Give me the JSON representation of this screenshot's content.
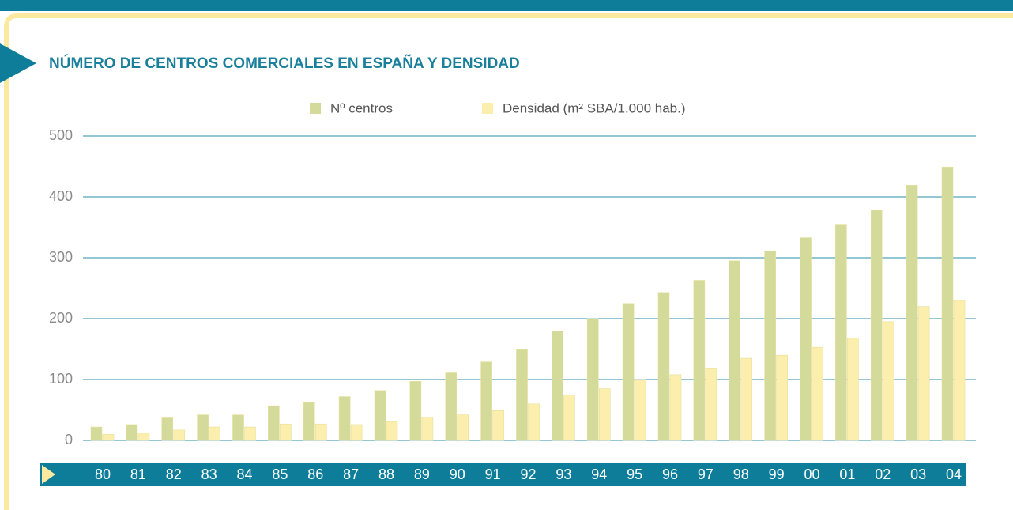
{
  "chart_data": {
    "type": "bar",
    "title": "NÚMERO DE CENTROS COMERCIALES EN ESPAÑA Y DENSIDAD",
    "categories": [
      "80",
      "81",
      "82",
      "83",
      "84",
      "85",
      "86",
      "87",
      "88",
      "89",
      "90",
      "91",
      "92",
      "93",
      "94",
      "95",
      "96",
      "97",
      "98",
      "99",
      "00",
      "01",
      "02",
      "03",
      "04"
    ],
    "series": [
      {
        "name": "Nº centros",
        "color": "#d3da9a",
        "values": [
          22,
          26,
          37,
          42,
          42,
          57,
          62,
          72,
          82,
          97,
          111,
          129,
          149,
          180,
          200,
          225,
          243,
          263,
          295,
          311,
          333,
          355,
          378,
          419,
          449
        ]
      },
      {
        "name": "Densidad (m² SBA/1.000 hab.)",
        "color": "#fcefad",
        "values": [
          10,
          12,
          17,
          22,
          22,
          27,
          27,
          26,
          31,
          38,
          42,
          49,
          60,
          75,
          85,
          100,
          108,
          118,
          135,
          140,
          153,
          168,
          195,
          220,
          230
        ]
      }
    ],
    "ylim": [
      0,
      500
    ],
    "yticks": [
      0,
      100,
      200,
      300,
      400,
      500
    ],
    "grid": true
  }
}
